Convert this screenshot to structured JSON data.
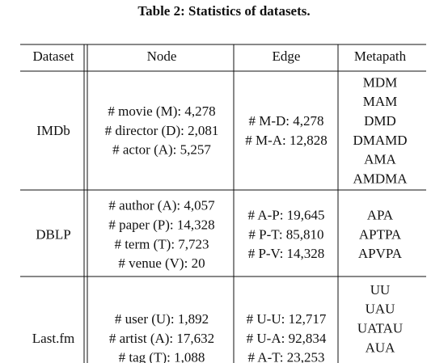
{
  "caption": "Table 2: Statistics of datasets.",
  "table": {
    "header": [
      "Dataset",
      "Node",
      "Edge",
      "Metapath"
    ],
    "rows": [
      {
        "dataset": "IMDb",
        "node": [
          "# movie (M): 4,278",
          "# director (D): 2,081",
          "# actor (A): 5,257"
        ],
        "edge": [
          "# M-D: 4,278",
          "# M-A: 12,828"
        ],
        "metapath": [
          "MDM",
          "MAM",
          "DMD",
          "DMAMD",
          "AMA",
          "AMDMA"
        ]
      },
      {
        "dataset": "DBLP",
        "node": [
          "# author (A): 4,057",
          "# paper (P): 14,328",
          "# term (T): 7,723",
          "# venue (V): 20"
        ],
        "edge": [
          "# A-P: 19,645",
          "# P-T: 85,810",
          "# P-V: 14,328"
        ],
        "metapath": [
          "APA",
          "APTPA",
          "APVPA"
        ]
      },
      {
        "dataset": "Last.fm",
        "node": [
          "# user (U): 1,892",
          "# artist (A): 17,632",
          "# tag (T): 1,088"
        ],
        "edge": [
          "# U-U: 12,717",
          "# U-A: 92,834",
          "# A-T: 23,253"
        ],
        "metapath": [
          "UU",
          "UAU",
          "UATAU",
          "AUA"
        ]
      }
    ]
  }
}
